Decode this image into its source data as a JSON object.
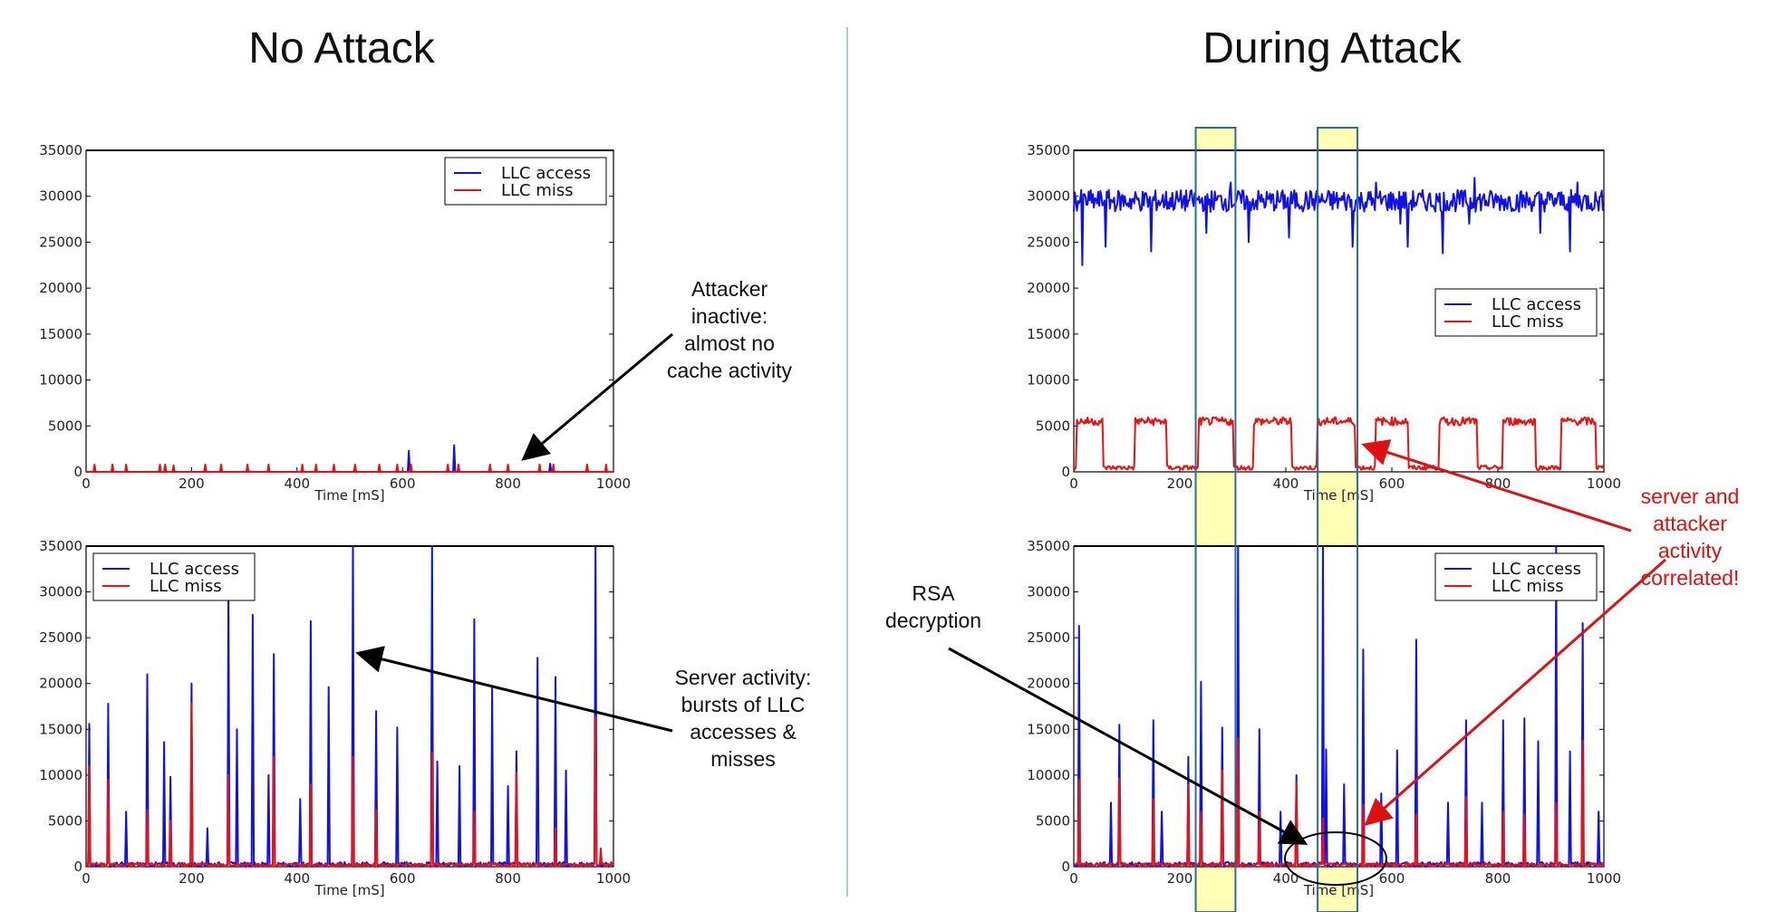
{
  "panels": {
    "left_title": "No Attack",
    "right_title": "During Attack"
  },
  "annotations": {
    "attacker_inactive": [
      "Attacker",
      "inactive:",
      "almost no",
      "cache activity"
    ],
    "server_activity": [
      "Server activity:",
      "bursts of LLC",
      "accesses &",
      "misses"
    ],
    "rsa": [
      "RSA",
      "decryption"
    ],
    "correlated": [
      "server and",
      "attacker",
      "activity",
      "correlated!"
    ]
  },
  "colors": {
    "access": "#1010ee",
    "miss": "#ee1010",
    "highlight": "#ffffa8",
    "highlight_border": "#2f6d8f",
    "divider": "#8fb7cf",
    "red_arrow": "#e01010"
  },
  "chart_data": [
    {
      "id": "no_attack_attacker",
      "type": "line",
      "xlabel": "Time [mS]",
      "ylabel": "",
      "xlim": [
        0,
        1000
      ],
      "ylim": [
        0,
        35000
      ],
      "xticks": [
        "0",
        "200",
        "400",
        "600",
        "800",
        "1000"
      ],
      "yticks": [
        "0",
        "5000",
        "10000",
        "15000",
        "20000",
        "25000",
        "30000",
        "35000"
      ],
      "legend": [
        "LLC access",
        "LLC miss"
      ],
      "legend_position": "top-right",
      "series": [
        {
          "name": "LLC access",
          "color": "#1010ee",
          "baseline": 0,
          "spikes": [
            [
              612,
              2300
            ],
            [
              698,
              2900
            ],
            [
              880,
              900
            ]
          ]
        },
        {
          "name": "LLC miss",
          "color": "#ee1010",
          "baseline": 0,
          "spikes": [
            [
              15,
              800
            ],
            [
              50,
              800
            ],
            [
              75,
              800
            ],
            [
              140,
              800
            ],
            [
              150,
              800
            ],
            [
              165,
              700
            ],
            [
              225,
              800
            ],
            [
              255,
              800
            ],
            [
              305,
              800
            ],
            [
              345,
              800
            ],
            [
              410,
              800
            ],
            [
              435,
              800
            ],
            [
              470,
              800
            ],
            [
              510,
              800
            ],
            [
              555,
              800
            ],
            [
              590,
              800
            ],
            [
              615,
              800
            ],
            [
              685,
              800
            ],
            [
              705,
              800
            ],
            [
              765,
              800
            ],
            [
              800,
              800
            ],
            [
              860,
              800
            ],
            [
              885,
              800
            ],
            [
              950,
              800
            ],
            [
              985,
              800
            ]
          ]
        }
      ]
    },
    {
      "id": "no_attack_server",
      "type": "line",
      "xlabel": "Time [mS]",
      "ylabel": "",
      "xlim": [
        0,
        1000
      ],
      "ylim": [
        0,
        35000
      ],
      "xticks": [
        "0",
        "200",
        "400",
        "600",
        "800",
        "1000"
      ],
      "yticks": [
        "0",
        "5000",
        "10000",
        "15000",
        "20000",
        "25000",
        "30000",
        "35000"
      ],
      "legend": [
        "LLC access",
        "LLC miss"
      ],
      "legend_position": "top-left",
      "series": [
        {
          "name": "LLC access",
          "color": "#1010ee",
          "baseline": 500,
          "spikes": [
            [
              5,
              15600
            ],
            [
              42,
              17800
            ],
            [
              75,
              6000
            ],
            [
              115,
              21000
            ],
            [
              148,
              13600
            ],
            [
              160,
              9800
            ],
            [
              200,
              20000
            ],
            [
              230,
              4200
            ],
            [
              270,
              30000
            ],
            [
              285,
              15000
            ],
            [
              315,
              27500
            ],
            [
              345,
              10000
            ],
            [
              355,
              23200
            ],
            [
              405,
              7400
            ],
            [
              425,
              26800
            ],
            [
              460,
              19600
            ],
            [
              505,
              35000
            ],
            [
              550,
              17000
            ],
            [
              590,
              15200
            ],
            [
              655,
              35000
            ],
            [
              665,
              11500
            ],
            [
              708,
              11000
            ],
            [
              735,
              27000
            ],
            [
              770,
              19600
            ],
            [
              800,
              8800
            ],
            [
              815,
              12600
            ],
            [
              855,
              22800
            ],
            [
              890,
              20700
            ],
            [
              910,
              10500
            ],
            [
              965,
              35000
            ]
          ]
        },
        {
          "name": "LLC miss",
          "color": "#ee1010",
          "baseline": 400,
          "spikes": [
            [
              5,
              11000
            ],
            [
              42,
              9500
            ],
            [
              115,
              6200
            ],
            [
              160,
              5000
            ],
            [
              200,
              17800
            ],
            [
              270,
              10000
            ],
            [
              355,
              12000
            ],
            [
              425,
              9000
            ],
            [
              505,
              12000
            ],
            [
              550,
              6200
            ],
            [
              655,
              12500
            ],
            [
              735,
              6000
            ],
            [
              815,
              10300
            ],
            [
              890,
              4200
            ],
            [
              965,
              16400
            ],
            [
              975,
              2000
            ]
          ]
        }
      ]
    },
    {
      "id": "attack_attacker",
      "type": "line",
      "xlabel": "Time [mS]",
      "ylabel": "",
      "xlim": [
        0,
        1000
      ],
      "ylim": [
        0,
        35000
      ],
      "xticks": [
        "0",
        "200",
        "400",
        "600",
        "800",
        "1000"
      ],
      "yticks": [
        "0",
        "5000",
        "10000",
        "15000",
        "20000",
        "25000",
        "30000",
        "35000"
      ],
      "legend": [
        "LLC access",
        "LLC miss"
      ],
      "legend_position": "center-right",
      "highlight_ranges": [
        [
          230,
          305
        ],
        [
          460,
          535
        ]
      ],
      "series": [
        {
          "name": "LLC access",
          "color": "#1010ee",
          "baseline": 29500,
          "dips": [
            [
              15,
              22500
            ],
            [
              60,
              24500
            ],
            [
              145,
              24000
            ],
            [
              250,
              26000
            ],
            [
              330,
              25000
            ],
            [
              405,
              25500
            ],
            [
              525,
              24500
            ],
            [
              615,
              27000
            ],
            [
              630,
              24500
            ],
            [
              695,
              23800
            ],
            [
              745,
              27000
            ],
            [
              880,
              26000
            ],
            [
              935,
              24000
            ]
          ],
          "peaks": [
            [
              295,
              31500
            ],
            [
              570,
              31500
            ],
            [
              755,
              32000
            ],
            [
              950,
              31500
            ]
          ]
        },
        {
          "name": "LLC miss",
          "color": "#ee1010",
          "high": 5500,
          "low": 200,
          "pulses": [
            [
              5,
              55
            ],
            [
              115,
              175
            ],
            [
              235,
              300
            ],
            [
              340,
              410
            ],
            [
              460,
              530
            ],
            [
              570,
              630
            ],
            [
              690,
              760
            ],
            [
              810,
              870
            ],
            [
              920,
              985
            ]
          ]
        }
      ]
    },
    {
      "id": "attack_server",
      "type": "line",
      "xlabel": "Time [mS]",
      "ylabel": "",
      "xlim": [
        0,
        1000
      ],
      "ylim": [
        0,
        35000
      ],
      "xticks": [
        "0",
        "200",
        "400",
        "600",
        "800",
        "1000"
      ],
      "yticks": [
        "0",
        "5000",
        "10000",
        "15000",
        "20000",
        "25000",
        "30000",
        "35000"
      ],
      "legend": [
        "LLC access",
        "LLC miss"
      ],
      "legend_position": "top-right",
      "highlight_ranges": [
        [
          230,
          305
        ],
        [
          460,
          535
        ]
      ],
      "series": [
        {
          "name": "LLC access",
          "color": "#1010ee",
          "baseline": 500,
          "spikes": [
            [
              10,
              26300
            ],
            [
              70,
              7000
            ],
            [
              85,
              15500
            ],
            [
              150,
              16000
            ],
            [
              165,
              6000
            ],
            [
              215,
              12000
            ],
            [
              240,
              20200
            ],
            [
              280,
              15200
            ],
            [
              310,
              35000
            ],
            [
              350,
              15000
            ],
            [
              390,
              6000
            ],
            [
              420,
              10000
            ],
            [
              470,
              35000
            ],
            [
              475,
              12800
            ],
            [
              510,
              9000
            ],
            [
              545,
              23700
            ],
            [
              580,
              8000
            ],
            [
              610,
              12700
            ],
            [
              645,
              24800
            ],
            [
              705,
              7000
            ],
            [
              740,
              16000
            ],
            [
              770,
              7000
            ],
            [
              810,
              16000
            ],
            [
              850,
              16200
            ],
            [
              875,
              13700
            ],
            [
              910,
              35000
            ],
            [
              935,
              12600
            ],
            [
              960,
              26600
            ],
            [
              990,
              6000
            ]
          ]
        },
        {
          "name": "LLC miss",
          "color": "#ee1010",
          "baseline": 400,
          "spikes": [
            [
              10,
              9500
            ],
            [
              85,
              9600
            ],
            [
              150,
              7400
            ],
            [
              215,
              9000
            ],
            [
              240,
              6000
            ],
            [
              280,
              10500
            ],
            [
              310,
              14000
            ],
            [
              350,
              6000
            ],
            [
              420,
              9200
            ],
            [
              470,
              5300
            ],
            [
              545,
              6800
            ],
            [
              645,
              5700
            ],
            [
              740,
              7600
            ],
            [
              810,
              6000
            ],
            [
              850,
              5700
            ],
            [
              910,
              7000
            ],
            [
              960,
              13800
            ]
          ]
        }
      ]
    }
  ]
}
